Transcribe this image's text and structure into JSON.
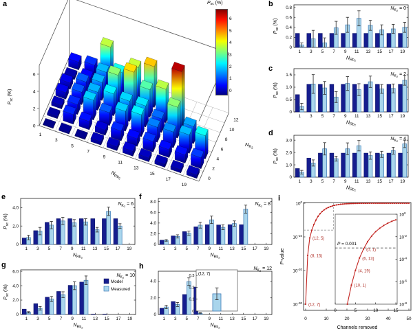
{
  "colors": {
    "model": "#161d8e",
    "model_edge": "#0a1060",
    "measured": "#a9d5ec",
    "measured_edge": "#3f7cb8",
    "error_bar": "#3a3a3a",
    "curve": "#c32622",
    "annotation": "#b03028",
    "dashed_gray": "#9e9e9e",
    "axis": "#222222",
    "grid3d": "#b3b3b3",
    "jet_low": "#000080",
    "jet_high": "#840000"
  },
  "labels": {
    "psc": [
      [
        "P",
        "i"
      ],
      [
        "sc",
        "s"
      ],
      [
        " (%)",
        "n"
      ]
    ],
    "nrb2": [
      [
        "N",
        "i"
      ],
      [
        "Rb",
        "s"
      ],
      [
        "2",
        "ss"
      ]
    ],
    "nk2": [
      [
        "N",
        "i"
      ],
      [
        "K",
        "s"
      ],
      [
        "2",
        "ss"
      ]
    ],
    "pvalue": [
      [
        "P",
        "i"
      ],
      [
        "-value",
        "n"
      ]
    ],
    "channels_removed": [
      [
        "Channels removed",
        "n"
      ]
    ],
    "p_threshold": [
      [
        "P",
        "i"
      ],
      [
        " = 0.001",
        "n"
      ]
    ]
  },
  "legend": {
    "model": "Model",
    "measured": "Measured"
  },
  "chart_data": [
    {
      "id": "a",
      "letter": "a",
      "type": "bar3d",
      "x_axis": "N_Rb2",
      "y_axis": "N_K2",
      "z_axis": "P_sc (%)",
      "x_categories": [
        "1",
        "3",
        "5",
        "7",
        "9",
        "11",
        "13",
        "15",
        "17",
        "19"
      ],
      "y_categories": [
        "0",
        "2",
        "4",
        "6",
        "8",
        "10",
        "12"
      ],
      "z_ticks": [
        "0",
        "2",
        "4",
        "6"
      ],
      "zlim": [
        0,
        7
      ],
      "values": [
        [
          0.05,
          0.17,
          0.09,
          0.39,
          0.45,
          0.58,
          0.44,
          0.35,
          0.37,
          0.4
        ],
        [
          0.22,
          1.13,
          0.97,
          0.6,
          1.15,
          0.9,
          1.22,
          0.93,
          0.95,
          1.28
        ],
        [
          0.4,
          1.15,
          2.3,
          1.5,
          2.3,
          2.55,
          1.75,
          1.85,
          2.15,
          2.7
        ],
        [
          0.75,
          1.45,
          2.1,
          2.55,
          2.35,
          2.45,
          1.6,
          3.6,
          2.0,
          null
        ],
        [
          0.75,
          1.5,
          2.1,
          3.6,
          4.6,
          3.2,
          3.9,
          6.6,
          null,
          null
        ],
        [
          0.3,
          0.85,
          2.15,
          2.75,
          4.0,
          4.75,
          null,
          null,
          null,
          null
        ],
        [
          0.9,
          1.2,
          3.95,
          0.15,
          null,
          null,
          null,
          null,
          null,
          null
        ]
      ],
      "colorbar": {
        "ticks": [
          "0",
          "1",
          "2",
          "3",
          "4",
          "5",
          "6"
        ],
        "range": [
          0,
          6
        ]
      }
    },
    {
      "id": "b",
      "letter": "b",
      "type": "bar",
      "annotation_suffix": " = 0",
      "categories": [
        "1",
        "3",
        "5",
        "7",
        "9",
        "11",
        "13",
        "15",
        "17",
        "19"
      ],
      "yticks": [
        [
          0,
          "0"
        ],
        [
          0.2,
          "0.2"
        ],
        [
          0.4,
          "0.4"
        ],
        [
          0.6,
          "0.6"
        ],
        [
          0.8,
          "0.8"
        ]
      ],
      "ymax": 0.85,
      "model": [
        0.28,
        0.28,
        0.28,
        0.28,
        0.28,
        0.28,
        0.28,
        0.28,
        0.28,
        0.28
      ],
      "measured": [
        0.05,
        0.17,
        0.09,
        0.39,
        0.45,
        0.58,
        0.44,
        0.35,
        0.37,
        0.4
      ],
      "err": [
        0.04,
        0.17,
        0.1,
        0.13,
        0.15,
        0.15,
        0.1,
        0.1,
        0.09,
        0.1
      ]
    },
    {
      "id": "c",
      "letter": "c",
      "type": "bar",
      "annotation_suffix": " = 2",
      "categories": [
        "1",
        "3",
        "5",
        "7",
        "9",
        "11",
        "13",
        "15",
        "17",
        "19"
      ],
      "yticks": [
        [
          0,
          "0"
        ],
        [
          0.5,
          "0.5"
        ],
        [
          1.0,
          "1.0"
        ],
        [
          1.5,
          "1.5"
        ]
      ],
      "ymax": 1.75,
      "model": [
        0.7,
        1.12,
        1.12,
        1.12,
        1.12,
        1.12,
        1.12,
        1.12,
        1.12,
        1.12
      ],
      "measured": [
        0.22,
        1.13,
        0.97,
        0.6,
        1.15,
        0.9,
        1.22,
        0.93,
        0.95,
        1.28
      ],
      "err": [
        0.13,
        0.38,
        0.26,
        0.22,
        0.28,
        0.24,
        0.23,
        0.18,
        0.18,
        0.2
      ]
    },
    {
      "id": "d",
      "letter": "d",
      "type": "bar",
      "annotation_suffix": " = 4",
      "categories": [
        "1",
        "3",
        "5",
        "7",
        "9",
        "11",
        "13",
        "15",
        "17",
        "19"
      ],
      "yticks": [
        [
          0,
          "0"
        ],
        [
          1.0,
          "1.0"
        ],
        [
          2.0,
          "2.0"
        ],
        [
          3.0,
          "3.0"
        ]
      ],
      "ymax": 3.4,
      "model": [
        0.7,
        1.55,
        1.95,
        1.95,
        1.95,
        1.95,
        1.95,
        1.95,
        1.95,
        1.95
      ],
      "measured": [
        0.4,
        1.15,
        2.3,
        1.5,
        2.3,
        2.55,
        1.75,
        1.85,
        2.15,
        2.7
      ],
      "err": [
        0.15,
        0.25,
        0.5,
        0.2,
        0.48,
        0.42,
        0.3,
        0.25,
        0.28,
        0.3
      ]
    },
    {
      "id": "e",
      "letter": "e",
      "type": "bar",
      "annotation_suffix": " = 6",
      "categories": [
        "1",
        "3",
        "5",
        "7",
        "9",
        "11",
        "13",
        "15",
        "17",
        "19"
      ],
      "yticks": [
        [
          0,
          "0"
        ],
        [
          2.0,
          "2.0"
        ],
        [
          4.0,
          "4.0"
        ]
      ],
      "ymax": 5.0,
      "model": [
        0.7,
        1.5,
        2.4,
        2.8,
        2.8,
        2.8,
        2.8,
        2.8,
        2.8,
        null
      ],
      "measured": [
        0.75,
        1.45,
        2.1,
        2.55,
        2.35,
        2.45,
        1.6,
        3.6,
        2.0,
        null
      ],
      "err": [
        0.25,
        0.4,
        0.4,
        0.4,
        0.35,
        0.35,
        0.25,
        0.45,
        0.25,
        null
      ]
    },
    {
      "id": "f",
      "letter": "f",
      "type": "bar",
      "annotation_suffix": " = 8",
      "categories": [
        "1",
        "3",
        "5",
        "7",
        "9",
        "11",
        "13",
        "15",
        "17",
        "19"
      ],
      "yticks": [
        [
          0,
          "0"
        ],
        [
          2.0,
          "2.0"
        ],
        [
          4.0,
          "4.0"
        ],
        [
          6.0,
          "6.0"
        ],
        [
          8.0,
          "8.0"
        ]
      ],
      "ymax": 8.6,
      "model": [
        0.8,
        1.6,
        2.4,
        3.3,
        3.7,
        3.65,
        3.7,
        3.7,
        null,
        null
      ],
      "measured": [
        0.75,
        1.5,
        2.1,
        3.6,
        4.6,
        3.2,
        3.9,
        6.6,
        null,
        null
      ],
      "err": [
        0.15,
        0.3,
        0.4,
        0.55,
        0.7,
        0.45,
        0.5,
        0.75,
        null,
        null
      ]
    },
    {
      "id": "g",
      "letter": "g",
      "type": "bar",
      "annotation_suffix": " = 10",
      "has_legend": true,
      "categories": [
        "1",
        "3",
        "5",
        "7",
        "9",
        "11",
        "13",
        "15",
        "17",
        "19"
      ],
      "yticks": [
        [
          0,
          "0"
        ],
        [
          2.0,
          "2.0"
        ],
        [
          4.0,
          "4.0"
        ],
        [
          6.0,
          "6.0"
        ]
      ],
      "ymax": 6.2,
      "model": [
        0.75,
        1.5,
        2.4,
        3.2,
        4.05,
        4.5,
        0.06,
        0.06,
        null,
        null
      ],
      "measured": [
        0.3,
        0.85,
        2.15,
        2.75,
        4.0,
        4.75,
        null,
        null,
        null,
        null
      ],
      "err": [
        0.1,
        0.25,
        0.35,
        0.4,
        0.55,
        0.6,
        null,
        null,
        null,
        null
      ]
    },
    {
      "id": "h",
      "letter": "h",
      "type": "bar",
      "annotation_suffix": " = 12",
      "categories": [
        "1",
        "3",
        "5",
        "7",
        "9",
        "11",
        "13",
        "15",
        "17",
        "19"
      ],
      "yticks": [
        [
          0,
          "0"
        ],
        [
          2.0,
          "2.0"
        ],
        [
          4.0,
          "4.0"
        ]
      ],
      "ymax": 5.2,
      "model": [
        0.75,
        1.55,
        2.4,
        3.3,
        null,
        null,
        null,
        null,
        null,
        null
      ],
      "measured": [
        0.9,
        1.2,
        3.95,
        0.15,
        null,
        null,
        null,
        null,
        null,
        null
      ],
      "err": [
        0.2,
        0.25,
        0.45,
        0.06,
        null,
        null,
        null,
        null,
        null,
        null
      ],
      "inset": {
        "label": "(12, 7)",
        "yticks": [
          [
            0,
            "0"
          ],
          [
            0.1,
            "0.1"
          ],
          [
            0.2,
            "0.2"
          ],
          [
            0.3,
            "0.3"
          ]
        ],
        "ymax": 0.347,
        "value": 0.145,
        "err": 0.05
      }
    },
    {
      "id": "i",
      "letter": "i",
      "type": "line",
      "ylabel": "P-value",
      "xlabel": "Channels removed",
      "x_start": 0,
      "logp": [
        -30,
        -15.5,
        -10.3,
        -8.0,
        -6.3,
        -5.0,
        -3.9,
        -3.1,
        -2.45,
        -1.95,
        -1.55,
        -1.25,
        -1.0,
        -0.8,
        -0.63,
        -0.5,
        -0.4,
        -0.31,
        -0.25,
        -0.19,
        -0.15,
        -0.12,
        -0.09,
        -0.07,
        -0.055,
        -0.043,
        -0.033,
        -0.026,
        -0.02,
        -0.016,
        -0.012,
        -0.01,
        -0.008,
        -0.006,
        -0.005,
        -0.004,
        -0.003,
        -0.003,
        -0.002,
        -0.002,
        -0.002,
        -0.001,
        -0.001,
        -0.001,
        -0.001,
        -0.001,
        -0.001,
        -0.001,
        -0.001,
        -0.001,
        -0.001
      ],
      "main": {
        "xticks": [
          "0",
          "10",
          "20",
          "30",
          "40",
          "50"
        ],
        "ytick_exps": [
          "0",
          "-10",
          "-20",
          "-30"
        ]
      },
      "zoom_box": {
        "x_max": 13.5,
        "logp_min": -8
      },
      "annotations": [
        {
          "label": "(12, 5)",
          "x": 2
        },
        {
          "label": "(8, 15)",
          "x": 1
        },
        {
          "label": "(12, 7)",
          "x": 0
        }
      ],
      "inset": {
        "xticks": [
          "0",
          "5",
          "10",
          "15"
        ],
        "ytick_exps": [
          "0",
          "-2",
          "-4",
          "-6",
          "-8"
        ],
        "threshold_logp": -3,
        "annotations": [
          {
            "label": "(0, 1)",
            "x": 7
          },
          {
            "label": "(6, 13)",
            "x": 6
          },
          {
            "label": "(4, 19)",
            "x": 5
          },
          {
            "label": "(10, 1)",
            "x": 4
          }
        ]
      }
    }
  ]
}
